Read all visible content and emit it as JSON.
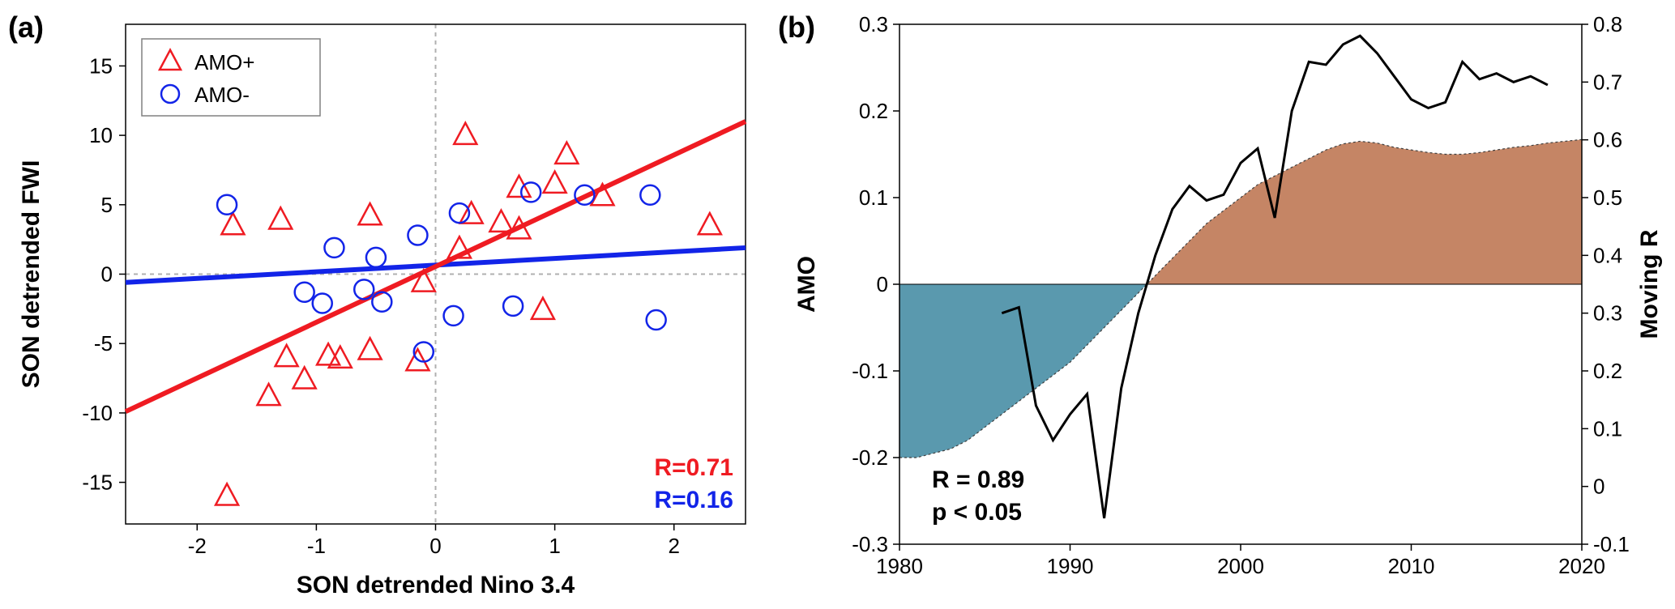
{
  "panel_a": {
    "label": "(a)",
    "type": "scatter",
    "title_fontsize": 36,
    "label_fontweight": "bold",
    "xlabel": "SON detrended Nino 3.4",
    "ylabel": "SON detrended FWI",
    "axis_label_fontsize": 30,
    "axis_label_fontweight": "bold",
    "tick_fontsize": 26,
    "xlim": [
      -2.6,
      2.6
    ],
    "ylim": [
      -18,
      18
    ],
    "xticks": [
      -2,
      -1,
      0,
      1,
      2
    ],
    "yticks": [
      -15,
      -10,
      -5,
      0,
      5,
      10,
      15
    ],
    "background_color": "#ffffff",
    "axis_color": "#000000",
    "grid_color": "#b0b0b0",
    "tick_length": 8,
    "legend": {
      "items": [
        {
          "label": "AMO+",
          "marker": "triangle",
          "color": "#ef1b22"
        },
        {
          "label": "AMO-",
          "marker": "circle",
          "color": "#1224e8"
        }
      ],
      "fontsize": 26,
      "border_color": "#808080"
    },
    "series_amo_plus": {
      "color": "#ef1b22",
      "marker": "triangle",
      "marker_size": 14,
      "line_width": 2.5,
      "points": [
        [
          -1.75,
          -16.0
        ],
        [
          -1.7,
          3.5
        ],
        [
          -1.4,
          -8.8
        ],
        [
          -1.3,
          3.9
        ],
        [
          -1.25,
          -6.0
        ],
        [
          -1.1,
          -7.6
        ],
        [
          -0.9,
          -5.9
        ],
        [
          -0.8,
          -6.1
        ],
        [
          -0.55,
          -5.5
        ],
        [
          -0.55,
          4.2
        ],
        [
          -0.15,
          -6.3
        ],
        [
          -0.1,
          -0.6
        ],
        [
          0.2,
          1.8
        ],
        [
          0.3,
          4.3
        ],
        [
          0.25,
          10.0
        ],
        [
          0.55,
          3.7
        ],
        [
          0.7,
          3.2
        ],
        [
          0.7,
          6.2
        ],
        [
          0.9,
          -2.6
        ],
        [
          1.0,
          6.5
        ],
        [
          1.1,
          8.6
        ],
        [
          1.4,
          5.6
        ],
        [
          2.3,
          3.5
        ]
      ],
      "fit_line": {
        "x1": -2.6,
        "y1": -9.9,
        "x2": 2.6,
        "y2": 11.0
      },
      "r_text": "R=0.71",
      "r_fontsize": 30,
      "r_fontweight": "bold"
    },
    "series_amo_minus": {
      "color": "#1224e8",
      "marker": "circle",
      "marker_size": 12,
      "line_width": 2.5,
      "points": [
        [
          -1.75,
          5.0
        ],
        [
          -1.1,
          -1.3
        ],
        [
          -0.95,
          -2.1
        ],
        [
          -0.85,
          1.9
        ],
        [
          -0.6,
          -1.1
        ],
        [
          -0.5,
          1.2
        ],
        [
          -0.45,
          -2.0
        ],
        [
          -0.15,
          2.8
        ],
        [
          -0.1,
          -5.6
        ],
        [
          0.15,
          -3.0
        ],
        [
          0.2,
          4.4
        ],
        [
          0.65,
          -2.3
        ],
        [
          0.8,
          5.9
        ],
        [
          1.25,
          5.7
        ],
        [
          1.8,
          5.7
        ],
        [
          1.85,
          -3.3
        ]
      ],
      "fit_line": {
        "x1": -2.6,
        "y1": -0.6,
        "x2": 2.6,
        "y2": 1.9
      },
      "r_text": "R=0.16",
      "r_fontsize": 30,
      "r_fontweight": "bold"
    }
  },
  "panel_b": {
    "label": "(b)",
    "type": "line-area-dual-axis",
    "title_fontsize": 36,
    "label_fontweight": "bold",
    "xlabel_blank": "",
    "ylabel_left": "AMO",
    "ylabel_right": "Moving R",
    "axis_label_fontsize": 30,
    "axis_label_fontweight": "bold",
    "tick_fontsize": 26,
    "xlim": [
      1980,
      2020
    ],
    "ylim_left": [
      -0.3,
      0.3
    ],
    "ylim_right": [
      -0.1,
      0.8
    ],
    "xticks": [
      1980,
      1990,
      2000,
      2010,
      2020
    ],
    "yticks_left": [
      -0.3,
      -0.2,
      -0.1,
      0,
      0.1,
      0.2,
      0.3
    ],
    "yticks_right": [
      -0.1,
      0,
      0.1,
      0.2,
      0.3,
      0.4,
      0.5,
      0.6,
      0.7,
      0.8
    ],
    "background_color": "#ffffff",
    "axis_color": "#000000",
    "area_neg_color": "#5a99ae",
    "area_pos_color": "#c58565",
    "area_border_color": "#404040",
    "area_border_dash": "3,3",
    "line_color": "#000000",
    "line_width": 3,
    "amo_series": [
      [
        1980,
        -0.2
      ],
      [
        1981,
        -0.2
      ],
      [
        1982,
        -0.195
      ],
      [
        1983,
        -0.19
      ],
      [
        1984,
        -0.18
      ],
      [
        1985,
        -0.165
      ],
      [
        1986,
        -0.15
      ],
      [
        1987,
        -0.135
      ],
      [
        1988,
        -0.12
      ],
      [
        1989,
        -0.105
      ],
      [
        1990,
        -0.09
      ],
      [
        1991,
        -0.07
      ],
      [
        1992,
        -0.05
      ],
      [
        1993,
        -0.03
      ],
      [
        1994,
        -0.01
      ],
      [
        1995,
        0.01
      ],
      [
        1996,
        0.03
      ],
      [
        1997,
        0.05
      ],
      [
        1998,
        0.07
      ],
      [
        1999,
        0.085
      ],
      [
        2000,
        0.1
      ],
      [
        2001,
        0.115
      ],
      [
        2002,
        0.125
      ],
      [
        2003,
        0.135
      ],
      [
        2004,
        0.145
      ],
      [
        2005,
        0.155
      ],
      [
        2006,
        0.162
      ],
      [
        2007,
        0.165
      ],
      [
        2008,
        0.163
      ],
      [
        2009,
        0.158
      ],
      [
        2010,
        0.155
      ],
      [
        2011,
        0.152
      ],
      [
        2012,
        0.15
      ],
      [
        2013,
        0.15
      ],
      [
        2014,
        0.152
      ],
      [
        2015,
        0.155
      ],
      [
        2016,
        0.158
      ],
      [
        2017,
        0.16
      ],
      [
        2018,
        0.163
      ],
      [
        2019,
        0.165
      ],
      [
        2020,
        0.167
      ]
    ],
    "moving_r_series": [
      [
        1986,
        0.3
      ],
      [
        1987,
        0.31
      ],
      [
        1988,
        0.14
      ],
      [
        1989,
        0.08
      ],
      [
        1990,
        0.125
      ],
      [
        1991,
        0.16
      ],
      [
        1992,
        -0.055
      ],
      [
        1993,
        0.17
      ],
      [
        1994,
        0.3
      ],
      [
        1995,
        0.4
      ],
      [
        1996,
        0.48
      ],
      [
        1997,
        0.52
      ],
      [
        1998,
        0.495
      ],
      [
        1999,
        0.505
      ],
      [
        2000,
        0.56
      ],
      [
        2001,
        0.585
      ],
      [
        2002,
        0.465
      ],
      [
        2003,
        0.65
      ],
      [
        2004,
        0.735
      ],
      [
        2005,
        0.73
      ],
      [
        2006,
        0.765
      ],
      [
        2007,
        0.78
      ],
      [
        2008,
        0.75
      ],
      [
        2009,
        0.71
      ],
      [
        2010,
        0.67
      ],
      [
        2011,
        0.655
      ],
      [
        2012,
        0.665
      ],
      [
        2013,
        0.735
      ],
      [
        2014,
        0.705
      ],
      [
        2015,
        0.715
      ],
      [
        2016,
        0.7
      ],
      [
        2017,
        0.71
      ],
      [
        2018,
        0.695
      ]
    ],
    "annotation": {
      "r_text": "R = 0.89",
      "p_text": "p < 0.05",
      "fontsize": 30,
      "fontweight": "bold",
      "color": "#000000"
    }
  }
}
